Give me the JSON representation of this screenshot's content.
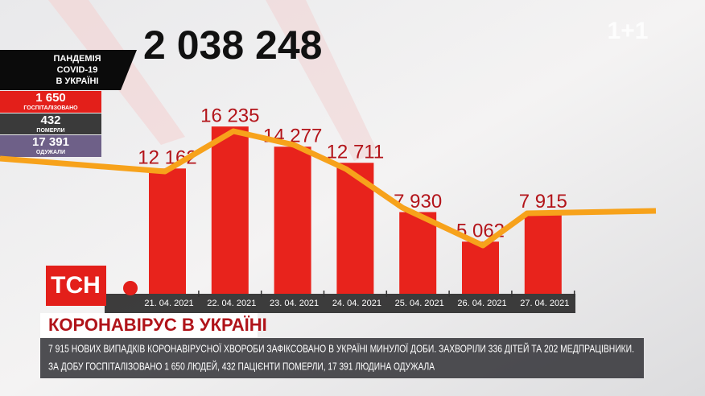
{
  "header": {
    "total": "2 038 248",
    "logo": "1+1"
  },
  "panel": {
    "title_lines": [
      "ПАНДЕМІЯ",
      "COVID-19",
      "В УКРАЇНІ"
    ],
    "stats": [
      {
        "value": "1 650",
        "label": "ГОСПІТАЛІЗОВАНО"
      },
      {
        "value": "432",
        "label": "ПОМЕРЛИ"
      },
      {
        "value": "17 391",
        "label": "ОДУЖАЛИ"
      }
    ]
  },
  "chart_data": {
    "type": "bar",
    "categories": [
      "21. 04. 2021",
      "22. 04. 2021",
      "23. 04. 2021",
      "24. 04. 2021",
      "25. 04. 2021",
      "26. 04. 2021",
      "27. 04. 2021"
    ],
    "values": [
      12162,
      16235,
      14277,
      12711,
      7930,
      5062,
      7915
    ],
    "value_labels": [
      "12 162",
      "16 235",
      "14 277",
      "12 711",
      "7 930",
      "5 062",
      "7 915"
    ],
    "color": "#e8231c"
  },
  "lower_third": {
    "logo": "ТСН",
    "headline": "КОРОНАВІРУС В УКРАЇНІ",
    "ticker": [
      "7 915 НОВИХ ВИПАДКІВ КОРОНАВІРУСНОЇ ХВОРОБИ ЗАФІКСОВАНО В УКРАЇНІ МИНУЛОЇ ДОБИ. ЗАХВОРІЛИ 336 ДІТЕЙ ТА 202 МЕДПРАЦІВНИКИ.",
      "ЗА ДОБУ ГОСПІТАЛІЗОВАНО 1 650 ЛЮДЕЙ, 432 ПАЦІЄНТИ ПОМЕРЛИ, 17 391 ЛЮДИНА ОДУЖАЛА"
    ]
  }
}
